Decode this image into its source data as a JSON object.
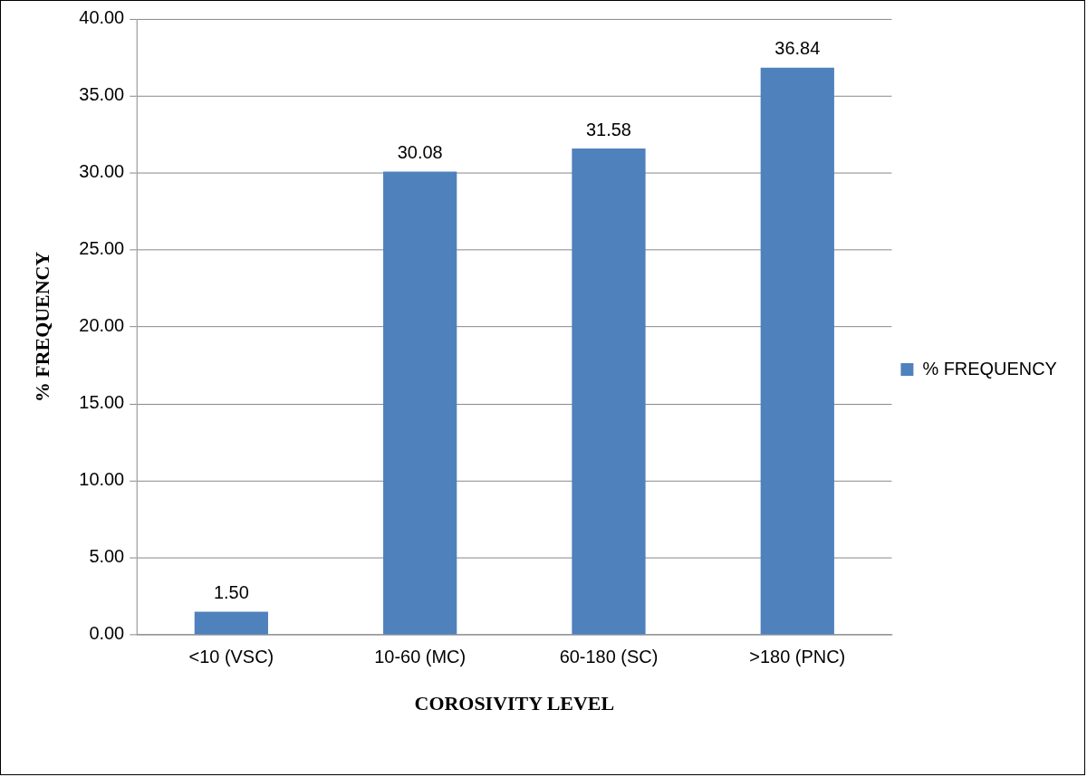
{
  "chart_data": {
    "type": "bar",
    "xlabel": "COROSIVITY LEVEL",
    "ylabel": "% FREQUENCY",
    "categories": [
      "<10 (VSC)",
      "10-60 (MC)",
      "60-180 (SC)",
      ">180 (PNC)"
    ],
    "series": [
      {
        "name": "% FREQUENCY",
        "color": "#4f81bd",
        "values": [
          1.5,
          30.08,
          31.58,
          36.84
        ],
        "value_labels": [
          "1.50",
          "30.08",
          "31.58",
          "36.84"
        ]
      }
    ],
    "ylim": [
      0,
      40
    ],
    "yticks": [
      {
        "value": 0,
        "label": "0.00"
      },
      {
        "value": 5,
        "label": "5.00"
      },
      {
        "value": 10,
        "label": "10.00"
      },
      {
        "value": 15,
        "label": "15.00"
      },
      {
        "value": 20,
        "label": "20.00"
      },
      {
        "value": 25,
        "label": "25.00"
      },
      {
        "value": 30,
        "label": "30.00"
      },
      {
        "value": 35,
        "label": "35.00"
      },
      {
        "value": 40,
        "label": "40.00"
      }
    ],
    "grid": "y",
    "legend": "right"
  }
}
